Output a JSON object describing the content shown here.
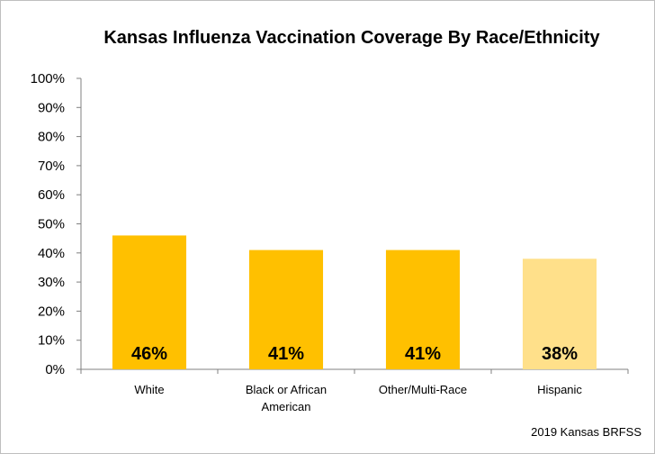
{
  "chart_data": {
    "type": "bar",
    "title": "Kansas Influenza Vaccination Coverage By Race/Ethnicity",
    "categories": [
      [
        "White"
      ],
      [
        "Black or African",
        "American"
      ],
      [
        "Other/Multi-Race"
      ],
      [
        "Hispanic"
      ]
    ],
    "values": [
      46,
      41,
      41,
      38
    ],
    "data_labels": [
      "46%",
      "41%",
      "41%",
      "38%"
    ],
    "bar_colors": [
      "#ffc000",
      "#ffc000",
      "#ffc000",
      "#ffe08a"
    ],
    "ylim": [
      0,
      100
    ],
    "yticks": [
      "0%",
      "10%",
      "20%",
      "30%",
      "40%",
      "50%",
      "60%",
      "70%",
      "80%",
      "90%",
      "100%"
    ],
    "grid": false,
    "legend": "none"
  },
  "source_note": "2019 Kansas  BRFSS"
}
